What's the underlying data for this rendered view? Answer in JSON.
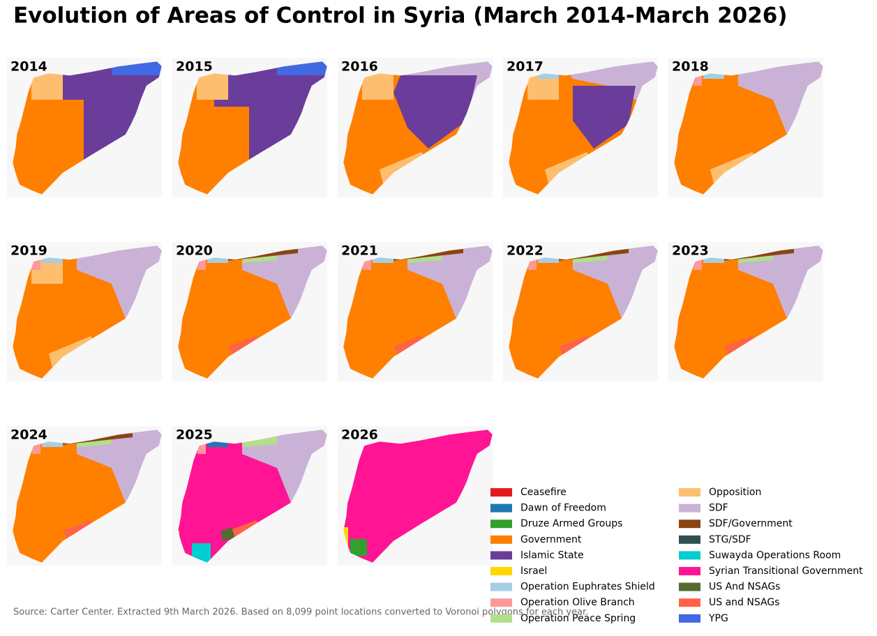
{
  "title": "Evolution of Areas of Control in Syria (March 2014-March 2026)",
  "panels": [
    "2014",
    "2015",
    "2016",
    "2017",
    "2018",
    "2019",
    "2020",
    "2021",
    "2022",
    "2023",
    "2024",
    "2025",
    "2026"
  ],
  "legend": [
    {
      "name": "Ceasefire",
      "color": "#e31a1c"
    },
    {
      "name": "Dawn of Freedom",
      "color": "#1f78b4"
    },
    {
      "name": "Druze Armed Groups",
      "color": "#33a02c"
    },
    {
      "name": "Government",
      "color": "#ff7f00"
    },
    {
      "name": "Islamic State",
      "color": "#6a3d9a"
    },
    {
      "name": "Israel",
      "color": "#ffd700"
    },
    {
      "name": "Operation Euphrates Shield",
      "color": "#a6cee3"
    },
    {
      "name": "Operation Olive Branch",
      "color": "#fb9a99"
    },
    {
      "name": "Operation Peace Spring",
      "color": "#b2df8a"
    },
    {
      "name": "Opposition",
      "color": "#fdbf6f"
    },
    {
      "name": "SDF",
      "color": "#cab2d6"
    },
    {
      "name": "SDF/Government",
      "color": "#8b4513"
    },
    {
      "name": "STG/SDF",
      "color": "#2f4f4f"
    },
    {
      "name": "Suwayda Operations Room",
      "color": "#00ced1"
    },
    {
      "name": "Syrian Transitional Government",
      "color": "#ff1493"
    },
    {
      "name": "US And NSAGs",
      "color": "#556b2f"
    },
    {
      "name": "US and NSAGs",
      "color": "#ff6347"
    },
    {
      "name": "YPG",
      "color": "#4169e1"
    }
  ],
  "source": "Source: Carter Center. Extracted 9th March 2026. Based on 8,099 point locations converted to Voronoi polygons for each year."
}
